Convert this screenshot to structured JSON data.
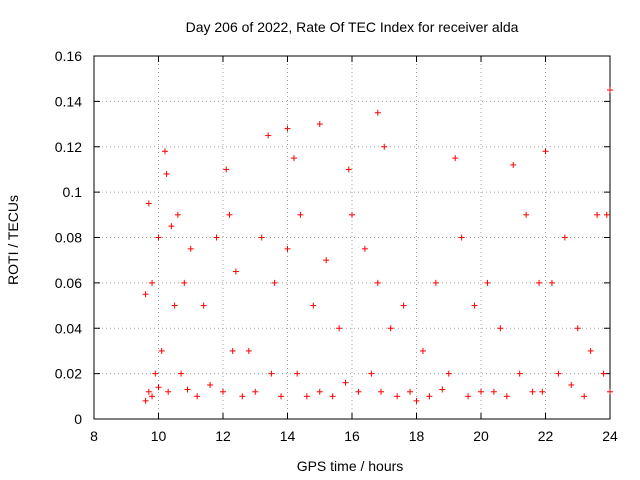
{
  "chart_data": {
    "type": "scatter",
    "title": "Day 206 of 2022, Rate Of TEC Index for receiver alda",
    "xlabel": "GPS time / hours",
    "ylabel": "ROTI / TECUs",
    "xlim": [
      8,
      24
    ],
    "ylim": [
      0,
      0.16
    ],
    "x_ticks": [
      8,
      10,
      12,
      14,
      16,
      18,
      20,
      22,
      24
    ],
    "x_tick_labels": [
      "8",
      "10",
      "12",
      "14",
      "16",
      "18",
      "20",
      "22",
      "24"
    ],
    "y_ticks": [
      0,
      0.02,
      0.04,
      0.06,
      0.08,
      0.1,
      0.12,
      0.14,
      0.16
    ],
    "y_tick_labels": [
      "0",
      "0.02",
      "0.04",
      "0.06",
      "0.08",
      "0.1",
      "0.12",
      "0.14",
      "0.16"
    ],
    "grid": true,
    "marker": "+",
    "color": "#ff0000",
    "series": [
      {
        "x": [
          9.6,
          9.6,
          9.7,
          9.7,
          9.8,
          9.8,
          9.9,
          10.0,
          10.0,
          10.1,
          10.2,
          10.25,
          10.3,
          10.4,
          10.5,
          10.6,
          10.7,
          10.8,
          10.9,
          11.0,
          11.2,
          11.4,
          11.6,
          11.8,
          12.0,
          12.1,
          12.2,
          12.3,
          12.4,
          12.6,
          12.8,
          13.0,
          13.2,
          13.4,
          13.5,
          13.6,
          13.8,
          14.0,
          14.0,
          14.2,
          14.3,
          14.4,
          14.6,
          14.8,
          15.0,
          15.0,
          15.2,
          15.4,
          15.6,
          15.8,
          15.9,
          16.0,
          16.2,
          16.4,
          16.6,
          16.8,
          16.8,
          16.9,
          17.0,
          17.2,
          17.4,
          17.6,
          17.8,
          18.0,
          18.2,
          18.4,
          18.6,
          18.8,
          19.0,
          19.2,
          19.4,
          19.6,
          19.8,
          20.0,
          20.2,
          20.4,
          20.6,
          20.8,
          21.0,
          21.2,
          21.4,
          21.6,
          21.8,
          21.9,
          22.0,
          22.2,
          22.4,
          22.6,
          22.8,
          23.0,
          23.2,
          23.4,
          23.6,
          23.8,
          23.9,
          24.0,
          24.0
        ],
        "y": [
          0.008,
          0.055,
          0.012,
          0.095,
          0.01,
          0.06,
          0.02,
          0.014,
          0.08,
          0.03,
          0.118,
          0.108,
          0.012,
          0.085,
          0.05,
          0.09,
          0.02,
          0.06,
          0.013,
          0.075,
          0.01,
          0.05,
          0.015,
          0.08,
          0.012,
          0.11,
          0.09,
          0.03,
          0.065,
          0.01,
          0.03,
          0.012,
          0.08,
          0.125,
          0.02,
          0.06,
          0.01,
          0.128,
          0.075,
          0.115,
          0.02,
          0.09,
          0.01,
          0.05,
          0.13,
          0.012,
          0.07,
          0.01,
          0.04,
          0.016,
          0.11,
          0.09,
          0.012,
          0.075,
          0.02,
          0.135,
          0.06,
          0.012,
          0.12,
          0.04,
          0.01,
          0.05,
          0.012,
          0.008,
          0.03,
          0.01,
          0.06,
          0.013,
          0.02,
          0.115,
          0.08,
          0.01,
          0.05,
          0.012,
          0.06,
          0.012,
          0.04,
          0.01,
          0.112,
          0.02,
          0.09,
          0.012,
          0.06,
          0.012,
          0.118,
          0.06,
          0.02,
          0.08,
          0.015,
          0.04,
          0.01,
          0.03,
          0.09,
          0.02,
          0.09,
          0.145,
          0.012
        ]
      }
    ]
  }
}
